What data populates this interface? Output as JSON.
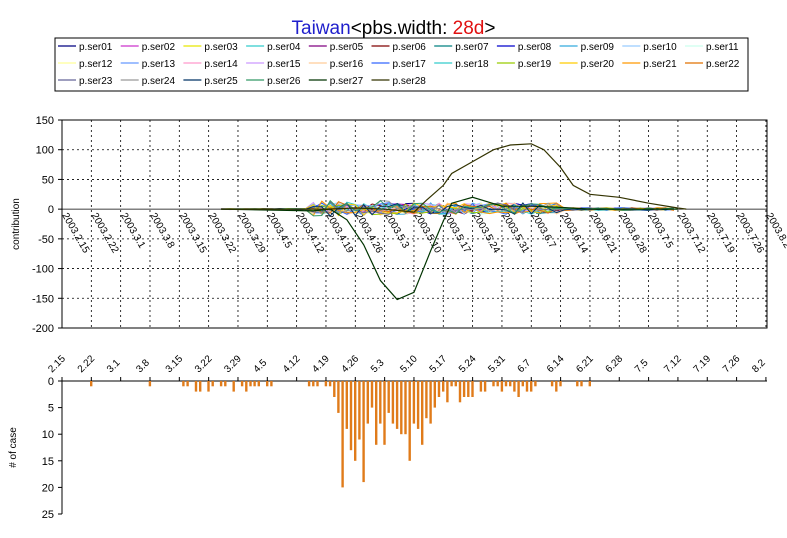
{
  "title": {
    "country": "Taiwan",
    "prefix": "<pbs.width: ",
    "value": "28d",
    "suffix": ">",
    "country_color": "#1f1fcc",
    "value_color": "#e01010"
  },
  "chart_data": [
    {
      "type": "line",
      "ylabel": "contribution",
      "ylim": [
        -200,
        150
      ],
      "yticks": [
        150,
        100,
        50,
        0,
        -50,
        -100,
        -150,
        -200
      ],
      "grid": "dotted vertical and horizontal",
      "legend_position": "top",
      "x_tick_labels": [
        "2003.2.15",
        "2003.2.22",
        "2003.3.1",
        "2003.3.8",
        "2003.3.15",
        "2003.3.22",
        "2003.3.29",
        "2003.4.5",
        "2003.4.12",
        "2003.4.19",
        "2003.4.26",
        "2003.5.3",
        "2003.5.10",
        "2003.5.17",
        "2003.5.24",
        "2003.5.31",
        "2003.6.7",
        "2003.6.14",
        "2003.6.21",
        "2003.6.28",
        "2003.7.5",
        "2003.7.12",
        "2003.7.19",
        "2003.7.26",
        "2003.8.2"
      ],
      "series_names": [
        "p.ser01",
        "p.ser02",
        "p.ser03",
        "p.ser04",
        "p.ser05",
        "p.ser06",
        "p.ser07",
        "p.ser08",
        "p.ser09",
        "p.ser10",
        "p.ser11",
        "p.ser12",
        "p.ser13",
        "p.ser14",
        "p.ser15",
        "p.ser16",
        "p.ser17",
        "p.ser18",
        "p.ser19",
        "p.ser20",
        "p.ser21",
        "p.ser22",
        "p.ser23",
        "p.ser24",
        "p.ser25",
        "p.ser26",
        "p.ser27",
        "p.ser28"
      ],
      "series_colors": [
        "#000080",
        "#cc33cc",
        "#e6e600",
        "#33cccc",
        "#800080",
        "#800000",
        "#008080",
        "#0000cc",
        "#33aadd",
        "#99ccff",
        "#ccffee",
        "#ffff99",
        "#6699ff",
        "#ff99cc",
        "#cc99ff",
        "#ffcc99",
        "#3366ff",
        "#33cccc",
        "#99cc00",
        "#ffcc00",
        "#ff9900",
        "#e07000",
        "#666699",
        "#999999",
        "#003366",
        "#339966",
        "#003300",
        "#333300"
      ],
      "series_highlight": [
        {
          "name": "p.ser27",
          "start": "2003.3.25",
          "points": [
            [
              "2003.3.25",
              0
            ],
            [
              "2003.4.16",
              -3
            ],
            [
              "2003.4.20",
              0
            ],
            [
              "2003.4.24",
              -18
            ],
            [
              "2003.4.28",
              -60
            ],
            [
              "2003.5.2",
              -120
            ],
            [
              "2003.5.6",
              -152
            ],
            [
              "2003.5.10",
              -140
            ],
            [
              "2003.5.14",
              -70
            ],
            [
              "2003.5.17",
              -20
            ],
            [
              "2003.5.19",
              10
            ],
            [
              "2003.5.24",
              20
            ],
            [
              "2003.5.31",
              5
            ],
            [
              "2003.6.7",
              5
            ],
            [
              "2003.6.14",
              3
            ],
            [
              "2003.6.21",
              0
            ],
            [
              "2003.7.12",
              0
            ]
          ]
        },
        {
          "name": "p.ser28",
          "start": "2003.3.25",
          "points": [
            [
              "2003.3.25",
              0
            ],
            [
              "2003.4.19",
              0
            ],
            [
              "2003.4.26",
              2
            ],
            [
              "2003.5.3",
              0
            ],
            [
              "2003.5.10",
              -5
            ],
            [
              "2003.5.13",
              15
            ],
            [
              "2003.5.17",
              40
            ],
            [
              "2003.5.19",
              60
            ],
            [
              "2003.5.24",
              80
            ],
            [
              "2003.5.29",
              100
            ],
            [
              "2003.6.2",
              108
            ],
            [
              "2003.6.7",
              110
            ],
            [
              "2003.6.10",
              100
            ],
            [
              "2003.6.14",
              70
            ],
            [
              "2003.6.17",
              40
            ],
            [
              "2003.6.21",
              25
            ],
            [
              "2003.6.28",
              20
            ],
            [
              "2003.7.5",
              10
            ],
            [
              "2003.7.12",
              2
            ],
            [
              "2003.7.14",
              0
            ]
          ]
        }
      ]
    },
    {
      "type": "bar",
      "ylabel": "# of case",
      "ylim": [
        0,
        25
      ],
      "y_inverted": true,
      "yticks": [
        0,
        5,
        10,
        15,
        20,
        25
      ],
      "x_tick_labels": [
        "2.15",
        "2.22",
        "3.1",
        "3.8",
        "3.15",
        "3.22",
        "3.29",
        "4.5",
        "4.12",
        "4.19",
        "4.26",
        "5.3",
        "5.10",
        "5.17",
        "5.24",
        "5.31",
        "6.7",
        "6.14",
        "6.21",
        "6.28",
        "7.5",
        "7.12",
        "7.19",
        "7.26",
        "8.2"
      ],
      "bar_color": "#e07b1a",
      "start_date": "2003.2.15",
      "values": [
        0,
        0,
        0,
        0,
        0,
        0,
        0,
        1,
        0,
        0,
        0,
        0,
        0,
        0,
        0,
        0,
        0,
        0,
        0,
        0,
        0,
        1,
        0,
        0,
        0,
        0,
        0,
        0,
        0,
        1,
        1,
        0,
        2,
        2,
        0,
        2,
        1,
        0,
        1,
        1,
        0,
        2,
        0,
        1,
        2,
        1,
        1,
        1,
        0,
        1,
        1,
        0,
        0,
        0,
        0,
        0,
        0,
        0,
        0,
        1,
        1,
        1,
        0,
        1,
        1,
        3,
        6,
        20,
        9,
        13,
        15,
        11,
        19,
        8,
        5,
        12,
        8,
        12,
        6,
        8,
        9,
        10,
        10,
        15,
        8,
        9,
        12,
        7,
        8,
        5,
        3,
        2,
        4,
        1,
        1,
        4,
        3,
        3,
        3,
        0,
        2,
        2,
        0,
        1,
        1,
        2,
        1,
        1,
        2,
        3,
        1,
        2,
        2,
        1,
        0,
        0,
        0,
        1,
        2,
        1,
        0,
        0,
        0,
        1,
        1,
        0,
        1,
        0,
        0,
        0,
        0,
        0,
        0,
        0,
        0,
        0,
        0,
        0,
        0,
        0,
        0,
        0,
        0,
        0,
        0,
        0,
        0,
        0,
        0,
        0,
        0,
        0,
        0,
        0,
        0,
        0,
        0,
        0,
        0,
        0,
        0,
        0,
        0,
        0,
        0,
        0,
        0,
        0,
        0,
        0,
        0,
        0,
        0
      ]
    }
  ]
}
